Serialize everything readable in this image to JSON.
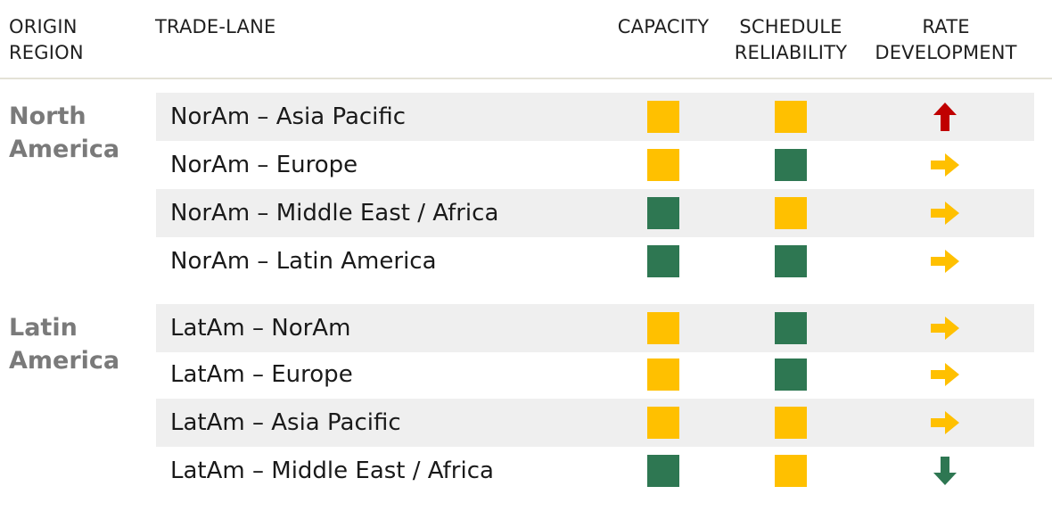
{
  "colors": {
    "amber": "#ffc000",
    "green": "#2e7752",
    "red": "#c00000",
    "arrow_green": "#2e7752"
  },
  "headers": {
    "origin_region": [
      "ORIGIN",
      "REGION"
    ],
    "trade_lane": "TRADE-LANE",
    "capacity": "CAPACITY",
    "schedule_reliability": [
      "SCHEDULE",
      "RELIABILITY"
    ],
    "rate_development": [
      "RATE",
      "DEVELOPMENT"
    ]
  },
  "regions": [
    {
      "name": [
        "North",
        "America"
      ],
      "lanes": [
        {
          "lane": "NorAm – Asia Pacific",
          "capacity": "amber",
          "schedule": "amber",
          "rate": "up"
        },
        {
          "lane": "NorAm – Europe",
          "capacity": "amber",
          "schedule": "green",
          "rate": "right"
        },
        {
          "lane": "NorAm – Middle East / Africa",
          "capacity": "green",
          "schedule": "amber",
          "rate": "right"
        },
        {
          "lane": "NorAm – Latin America",
          "capacity": "green",
          "schedule": "green",
          "rate": "right"
        }
      ]
    },
    {
      "name": [
        "Latin",
        "America"
      ],
      "lanes": [
        {
          "lane": "LatAm – NorAm",
          "capacity": "amber",
          "schedule": "green",
          "rate": "right"
        },
        {
          "lane": "LatAm – Europe",
          "capacity": "amber",
          "schedule": "green",
          "rate": "right"
        },
        {
          "lane": "LatAm – Asia Pacific",
          "capacity": "amber",
          "schedule": "amber",
          "rate": "right"
        },
        {
          "lane": "LatAm – Middle East / Africa",
          "capacity": "green",
          "schedule": "amber",
          "rate": "down"
        }
      ]
    }
  ]
}
